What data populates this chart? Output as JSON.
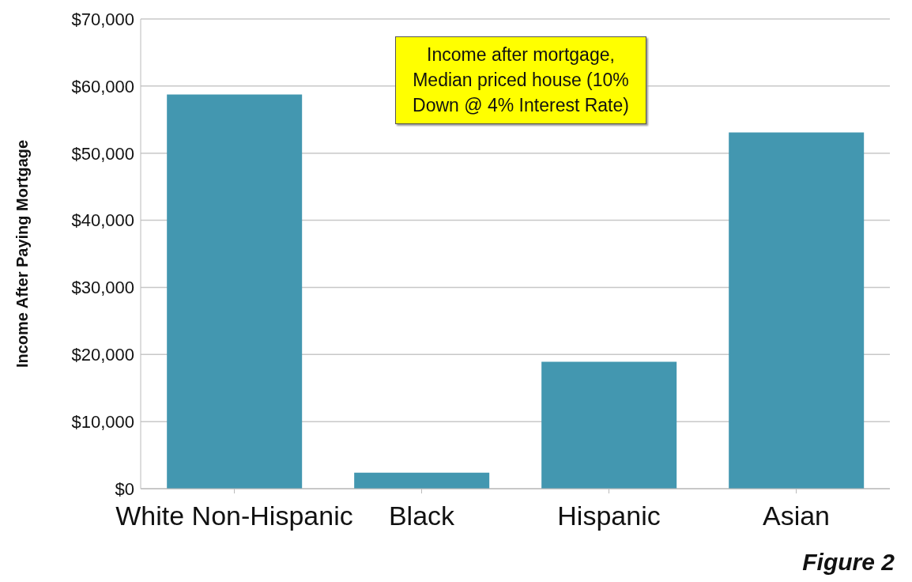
{
  "chart_data": {
    "type": "bar",
    "ylabel": "Income  After Paying Mortgage",
    "categories": [
      "White Non-Hispanic",
      "Black",
      "Hispanic",
      "Asian"
    ],
    "values": [
      58750,
      2400,
      18900,
      53100
    ],
    "color": "#4397b0",
    "ylim": [
      0,
      70000
    ],
    "yticks": [
      {
        "value": 0,
        "label": "$0"
      },
      {
        "value": 10000,
        "label": "$10,000"
      },
      {
        "value": 20000,
        "label": "$20,000"
      },
      {
        "value": 30000,
        "label": "$30,000"
      },
      {
        "value": 40000,
        "label": "$40,000"
      },
      {
        "value": 50000,
        "label": "$50,000"
      },
      {
        "value": 60000,
        "label": "$60,000"
      },
      {
        "value": 70000,
        "label": "$70,000"
      }
    ],
    "grid": "y",
    "annotations": [
      "Income after mortgage, Median priced house (10% Down @ 4% Interest Rate)",
      "Figure 2"
    ]
  }
}
